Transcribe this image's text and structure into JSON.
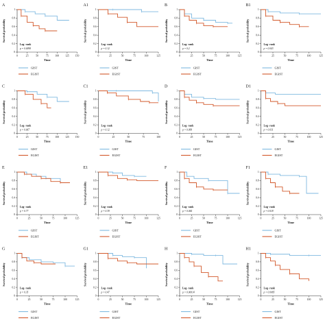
{
  "figure": {
    "legend_labels": [
      "GIST",
      "EGIST"
    ],
    "colors": {
      "GIST": "#7fb9e0",
      "EGIST": "#d2582a",
      "axis": "#333333"
    }
  },
  "chart_data": [
    {
      "type": "line",
      "panel": "A",
      "ylabel": "Survival probability",
      "xlabel": "Time",
      "xticks": [
        0,
        25,
        50,
        75,
        100,
        125,
        150
      ],
      "yticks": [
        0,
        0.2,
        0.4,
        0.6,
        0.8,
        1
      ],
      "xlim": [
        0,
        150
      ],
      "ylim": [
        0,
        1
      ],
      "annotation": [
        "Log- rank",
        "p = 0.0098"
      ],
      "legend_placement": "below",
      "series": [
        {
          "name": "GIST",
          "x": [
            0,
            20,
            45,
            70,
            100,
            130
          ],
          "y": [
            1,
            0.95,
            0.9,
            0.85,
            0.75,
            0.75
          ]
        },
        {
          "name": "EGIST",
          "x": [
            0,
            10,
            25,
            40,
            55,
            70,
            100
          ],
          "y": [
            1,
            0.85,
            0.7,
            0.62,
            0.55,
            0.5,
            0.5
          ]
        }
      ]
    },
    {
      "type": "line",
      "panel": "A1",
      "ylabel": "Survival probability",
      "xlabel": "Time",
      "xticks": [
        0,
        25,
        50,
        75,
        100,
        125
      ],
      "yticks": [
        0,
        0.2,
        0.4,
        0.6,
        0.8,
        1
      ],
      "xlim": [
        0,
        125
      ],
      "ylim": [
        0,
        1
      ],
      "annotation": [
        "Log- rank",
        "p = 0.12"
      ],
      "legend_placement": "below",
      "series": [
        {
          "name": "GIST",
          "x": [
            0,
            30,
            60,
            90,
            125
          ],
          "y": [
            1,
            1,
            1,
            0.95,
            0.95
          ]
        },
        {
          "name": "EGIST",
          "x": [
            0,
            20,
            40,
            60,
            80,
            125
          ],
          "y": [
            1,
            0.9,
            0.82,
            0.7,
            0.6,
            0.6
          ]
        }
      ]
    },
    {
      "type": "line",
      "panel": "B",
      "ylabel": "Survival probability",
      "xlabel": "Time",
      "xticks": [
        0,
        25,
        50,
        75,
        100,
        125
      ],
      "yticks": [
        0,
        0.2,
        0.4,
        0.6,
        0.8,
        1
      ],
      "xlim": [
        0,
        125
      ],
      "ylim": [
        0,
        1
      ],
      "annotation": [
        "Log- rank",
        "p = 0.2"
      ],
      "legend_placement": "below",
      "series": [
        {
          "name": "GIST",
          "x": [
            0,
            10,
            25,
            50,
            75,
            100,
            110
          ],
          "y": [
            1,
            0.9,
            0.8,
            0.75,
            0.7,
            0.68,
            0.68
          ]
        },
        {
          "name": "EGIST",
          "x": [
            0,
            10,
            20,
            35,
            50,
            70,
            100
          ],
          "y": [
            1,
            0.85,
            0.75,
            0.68,
            0.62,
            0.6,
            0.6
          ]
        }
      ]
    },
    {
      "type": "line",
      "panel": "B1",
      "ylabel": "Survival probability",
      "xlabel": "Time",
      "xticks": [
        0,
        25,
        50,
        75,
        100,
        125
      ],
      "yticks": [
        0,
        0.2,
        0.4,
        0.6,
        0.8,
        1
      ],
      "xlim": [
        0,
        125
      ],
      "ylim": [
        0,
        1
      ],
      "annotation": [
        "Log- rank",
        "p = 0.043"
      ],
      "legend_placement": "below",
      "series": [
        {
          "name": "GIST",
          "x": [
            0,
            15,
            40,
            80,
            125
          ],
          "y": [
            1,
            0.95,
            0.92,
            0.9,
            0.9
          ]
        },
        {
          "name": "EGIST",
          "x": [
            0,
            10,
            25,
            40,
            60,
            80,
            100
          ],
          "y": [
            1,
            0.85,
            0.75,
            0.7,
            0.65,
            0.6,
            0.6
          ]
        }
      ]
    },
    {
      "type": "line",
      "panel": "C",
      "ylabel": "Survival probability",
      "xlabel": "Time",
      "xticks": [
        0,
        25,
        50,
        75,
        100,
        125,
        150
      ],
      "yticks": [
        0,
        0.2,
        0.4,
        0.6,
        0.8,
        1
      ],
      "xlim": [
        0,
        150
      ],
      "ylim": [
        0,
        1
      ],
      "annotation": [
        "Log- rank",
        "p = 0.067"
      ],
      "legend_placement": "below",
      "series": [
        {
          "name": "GIST",
          "x": [
            0,
            25,
            50,
            75,
            100,
            130
          ],
          "y": [
            1,
            0.98,
            0.92,
            0.85,
            0.75,
            0.75
          ]
        },
        {
          "name": "EGIST",
          "x": [
            0,
            20,
            40,
            60,
            75,
            85
          ],
          "y": [
            1,
            0.92,
            0.8,
            0.7,
            0.6,
            0.6
          ]
        }
      ]
    },
    {
      "type": "line",
      "panel": "C1",
      "ylabel": "Survival probability",
      "xlabel": "Time",
      "xticks": [
        0,
        25,
        50,
        75,
        100
      ],
      "yticks": [
        0,
        0.2,
        0.4,
        0.6,
        0.8,
        1
      ],
      "xlim": [
        0,
        100
      ],
      "ylim": [
        0,
        1
      ],
      "annotation": [
        "Log- rank",
        "p = 0.12"
      ],
      "legend_placement": "below",
      "series": [
        {
          "name": "GIST",
          "x": [
            0,
            30,
            60,
            90,
            100
          ],
          "y": [
            1,
            1,
            1,
            0.95,
            0.75
          ]
        },
        {
          "name": "EGIST",
          "x": [
            0,
            15,
            30,
            50,
            70,
            85,
            100
          ],
          "y": [
            1,
            0.95,
            0.88,
            0.8,
            0.75,
            0.72,
            0.72
          ]
        }
      ]
    },
    {
      "type": "line",
      "panel": "D",
      "ylabel": "Survival probability",
      "xlabel": "Time",
      "xticks": [
        0,
        25,
        50,
        75,
        100,
        125
      ],
      "yticks": [
        0,
        0.2,
        0.4,
        0.6,
        0.8,
        1
      ],
      "xlim": [
        0,
        125
      ],
      "ylim": [
        0,
        1
      ],
      "annotation": [
        "Log- rank",
        "p = 0.099"
      ],
      "legend_placement": "below",
      "series": [
        {
          "name": "GIST",
          "x": [
            0,
            10,
            25,
            50,
            75,
            125
          ],
          "y": [
            1,
            0.92,
            0.85,
            0.82,
            0.8,
            0.8
          ]
        },
        {
          "name": "EGIST",
          "x": [
            0,
            10,
            20,
            35,
            50,
            70,
            125
          ],
          "y": [
            1,
            0.85,
            0.78,
            0.72,
            0.68,
            0.65,
            0.65
          ]
        }
      ]
    },
    {
      "type": "line",
      "panel": "D1",
      "ylabel": "Survival probability",
      "xlabel": "Time",
      "xticks": [
        0,
        25,
        50,
        75,
        100,
        125
      ],
      "yticks": [
        0,
        0.2,
        0.4,
        0.6,
        0.8,
        1
      ],
      "xlim": [
        0,
        125
      ],
      "ylim": [
        0,
        1
      ],
      "annotation": [
        "Log- rank",
        "p = 0.031"
      ],
      "legend_placement": "below",
      "series": [
        {
          "name": "GIST",
          "x": [
            0,
            10,
            30,
            125
          ],
          "y": [
            1,
            0.95,
            0.92,
            0.92
          ]
        },
        {
          "name": "EGIST",
          "x": [
            0,
            10,
            20,
            35,
            50,
            125
          ],
          "y": [
            1,
            0.82,
            0.75,
            0.7,
            0.65,
            0.65
          ]
        }
      ]
    },
    {
      "type": "line",
      "panel": "E",
      "ylabel": "Survival probability",
      "xlabel": "Time",
      "xticks": [
        0,
        25,
        50,
        75,
        100,
        125
      ],
      "yticks": [
        0,
        0.2,
        0.4,
        0.6,
        0.8,
        1
      ],
      "xlim": [
        0,
        125
      ],
      "ylim": [
        0,
        1
      ],
      "annotation": [
        "Log- rank",
        "p = 0.77"
      ],
      "legend_placement": "below",
      "series": [
        {
          "name": "GIST",
          "x": [
            0,
            20,
            40,
            60,
            90,
            110
          ],
          "y": [
            1,
            0.95,
            0.9,
            0.85,
            0.75,
            0.75
          ]
        },
        {
          "name": "EGIST",
          "x": [
            0,
            15,
            30,
            50,
            70,
            90,
            110
          ],
          "y": [
            1,
            0.95,
            0.9,
            0.85,
            0.78,
            0.75,
            0.75
          ]
        }
      ]
    },
    {
      "type": "line",
      "panel": "E1",
      "ylabel": "Survival probability",
      "xlabel": "Time",
      "xticks": [
        0,
        25,
        50,
        75,
        100,
        125
      ],
      "yticks": [
        0,
        0.2,
        0.4,
        0.6,
        0.8,
        1
      ],
      "xlim": [
        0,
        125
      ],
      "ylim": [
        0,
        1
      ],
      "annotation": [
        "Log- rank",
        "p = 0.39"
      ],
      "legend_placement": "below",
      "series": [
        {
          "name": "GIST",
          "x": [
            0,
            30,
            50,
            75,
            100
          ],
          "y": [
            1,
            0.98,
            0.92,
            0.9,
            0.9
          ]
        },
        {
          "name": "EGIST",
          "x": [
            0,
            20,
            40,
            60,
            80,
            125
          ],
          "y": [
            1,
            0.92,
            0.85,
            0.82,
            0.8,
            0.8
          ]
        }
      ]
    },
    {
      "type": "line",
      "panel": "F",
      "ylabel": "Survival probability",
      "xlabel": "Time",
      "xticks": [
        0,
        25,
        50,
        75,
        100,
        125
      ],
      "yticks": [
        0,
        0.2,
        0.4,
        0.6,
        0.8,
        1
      ],
      "xlim": [
        0,
        125
      ],
      "ylim": [
        0,
        1
      ],
      "annotation": [
        "Log- rank",
        "p = 0.044"
      ],
      "legend_placement": "below",
      "series": [
        {
          "name": "GIST",
          "x": [
            0,
            15,
            30,
            60,
            90,
            100,
            125
          ],
          "y": [
            1,
            0.9,
            0.85,
            0.8,
            0.8,
            0.5,
            0.5
          ]
        },
        {
          "name": "EGIST",
          "x": [
            0,
            10,
            20,
            35,
            50,
            70,
            100
          ],
          "y": [
            1,
            0.85,
            0.75,
            0.65,
            0.6,
            0.58,
            0.58
          ]
        }
      ]
    },
    {
      "type": "line",
      "panel": "F1",
      "ylabel": "Survival probability",
      "xlabel": "Time",
      "xticks": [
        0,
        25,
        50,
        75,
        100,
        125
      ],
      "yticks": [
        0,
        0.2,
        0.4,
        0.6,
        0.8,
        1
      ],
      "xlim": [
        0,
        125
      ],
      "ylim": [
        0,
        1
      ],
      "annotation": [
        "Log- rank",
        "p = 0.018"
      ],
      "legend_placement": "below",
      "series": [
        {
          "name": "GIST",
          "x": [
            0,
            15,
            40,
            80,
            95,
            120
          ],
          "y": [
            1,
            0.95,
            0.92,
            0.9,
            0.5,
            0.5
          ]
        },
        {
          "name": "EGIST",
          "x": [
            0,
            10,
            20,
            30,
            45,
            60,
            80
          ],
          "y": [
            1,
            0.85,
            0.75,
            0.65,
            0.55,
            0.5,
            0.5
          ]
        }
      ]
    },
    {
      "type": "line",
      "panel": "G",
      "ylabel": "Survival probability",
      "xlabel": "Time",
      "xticks": [
        0,
        25,
        50,
        75,
        100,
        125
      ],
      "yticks": [
        0,
        0.2,
        0.4,
        0.6,
        0.8,
        1
      ],
      "xlim": [
        0,
        125
      ],
      "ylim": [
        0,
        1
      ],
      "annotation": [
        "Log- rank",
        "p = 0.35"
      ],
      "legend_placement": "below",
      "series": [
        {
          "name": "GIST",
          "x": [
            0,
            10,
            25,
            50,
            75,
            100,
            120
          ],
          "y": [
            1,
            0.9,
            0.85,
            0.8,
            0.78,
            0.7,
            0.7
          ]
        },
        {
          "name": "EGIST",
          "x": [
            0,
            10,
            20,
            35,
            50,
            80
          ],
          "y": [
            1,
            0.9,
            0.82,
            0.78,
            0.75,
            0.75
          ]
        }
      ]
    },
    {
      "type": "line",
      "panel": "G1",
      "ylabel": "Survival probability",
      "xlabel": "Time",
      "xticks": [
        0,
        25,
        50,
        75,
        100,
        125
      ],
      "yticks": [
        0,
        0.2,
        0.4,
        0.6,
        0.8,
        1
      ],
      "xlim": [
        0,
        125
      ],
      "ylim": [
        0,
        1
      ],
      "annotation": [
        "Log- rank",
        "p = 0.47"
      ],
      "legend_placement": "below",
      "series": [
        {
          "name": "GIST",
          "x": [
            0,
            30,
            50,
            75,
            100
          ],
          "y": [
            1,
            0.95,
            0.92,
            0.9,
            0.65
          ]
        },
        {
          "name": "EGIST",
          "x": [
            0,
            20,
            40,
            60,
            80,
            125
          ],
          "y": [
            1,
            0.88,
            0.82,
            0.78,
            0.75,
            0.75
          ]
        }
      ]
    },
    {
      "type": "line",
      "panel": "H",
      "ylabel": "Survival probability",
      "xlabel": "Time",
      "xticks": [
        0,
        25,
        50,
        75,
        100,
        125
      ],
      "yticks": [
        0,
        0.2,
        0.4,
        0.6,
        0.8,
        1
      ],
      "xlim": [
        0,
        125
      ],
      "ylim": [
        0,
        1
      ],
      "annotation": [
        "Log- rank",
        "p = 0.00014"
      ],
      "legend_placement": "below",
      "series": [
        {
          "name": "GIST",
          "x": [
            0,
            25,
            50,
            75,
            90,
            120
          ],
          "y": [
            1,
            0.98,
            0.95,
            0.95,
            0.75,
            0.75
          ]
        },
        {
          "name": "EGIST",
          "x": [
            0,
            10,
            20,
            30,
            45,
            60,
            80,
            90
          ],
          "y": [
            1,
            0.9,
            0.8,
            0.7,
            0.55,
            0.45,
            0.35,
            0.35
          ]
        }
      ]
    },
    {
      "type": "line",
      "panel": "H1",
      "ylabel": "Survival probability",
      "xlabel": "Time",
      "xticks": [
        0,
        25,
        50,
        75,
        100,
        125
      ],
      "yticks": [
        0,
        0.2,
        0.4,
        0.6,
        0.8,
        1
      ],
      "xlim": [
        0,
        125
      ],
      "ylim": [
        0,
        1
      ],
      "annotation": [
        "Log- rank",
        "p = 0.0085"
      ],
      "legend_placement": "below",
      "series": [
        {
          "name": "GIST",
          "x": [
            0,
            20,
            60,
            100,
            125
          ],
          "y": [
            1,
            0.98,
            0.95,
            0.95,
            0.95
          ]
        },
        {
          "name": "EGIST",
          "x": [
            0,
            10,
            20,
            30,
            40,
            60,
            80,
            100
          ],
          "y": [
            1,
            0.9,
            0.82,
            0.72,
            0.62,
            0.52,
            0.4,
            0.35
          ]
        }
      ]
    }
  ]
}
